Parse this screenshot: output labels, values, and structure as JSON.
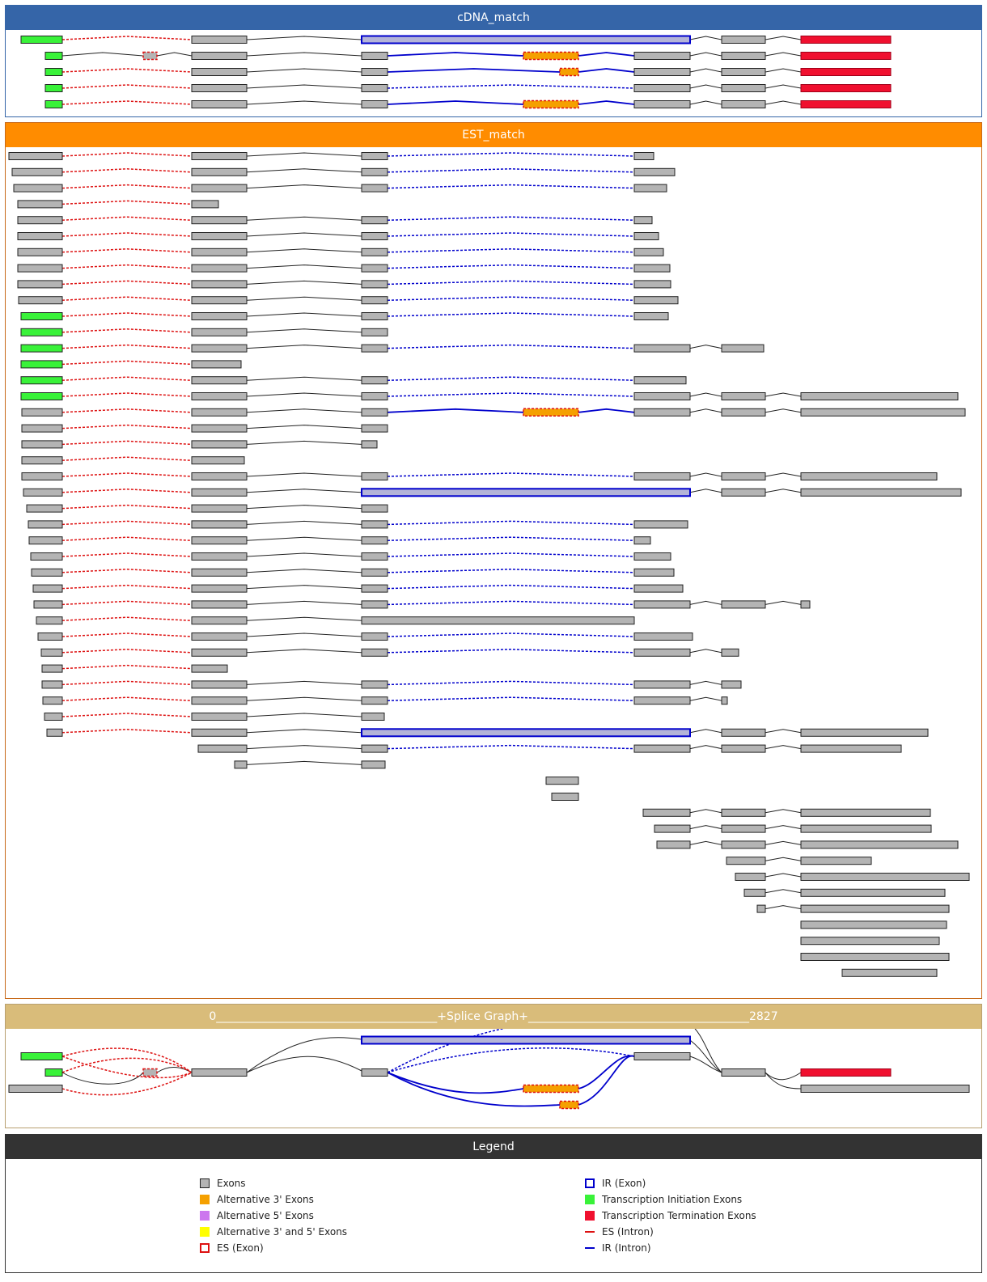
{
  "panels": {
    "cdna_title": "cDNA_match",
    "est_title": "EST_match",
    "splice_title": "0_______________________________________+Splice Graph+_______________________________________2827",
    "legend_title": "Legend"
  },
  "colors": {
    "exon": "#b4b4b4",
    "initiation": "#39f239",
    "termination": "#f0102f",
    "alt3": "#f5a000",
    "alt5": "#cc77ee",
    "alt35": "#ffff00",
    "ir_exon_fill": "#b4b4d8",
    "ir_blue": "#0000cc",
    "es_red": "#dd1111"
  },
  "legend": {
    "left": [
      {
        "icon": "exon-icon",
        "label": "Exons"
      },
      {
        "icon": "alt3-icon",
        "label": "Alternative 3' Exons"
      },
      {
        "icon": "alt5-icon",
        "label": "Alternative 5' Exons"
      },
      {
        "icon": "alt35-icon",
        "label": "Alternative 3' and 5' Exons"
      },
      {
        "icon": "es-exon-icon",
        "label": "ES (Exon)"
      }
    ],
    "right": [
      {
        "icon": "ir-exon-icon",
        "label": "IR (Exon)"
      },
      {
        "icon": "initiation-icon",
        "label": "Transcription Initiation Exons"
      },
      {
        "icon": "termination-icon",
        "label": "Transcription Termination Exons"
      },
      {
        "icon": "es-intron-icon",
        "label": "ES (Intron)"
      },
      {
        "icon": "ir-intron-icon",
        "label": "IR (Intron)"
      }
    ]
  }
}
